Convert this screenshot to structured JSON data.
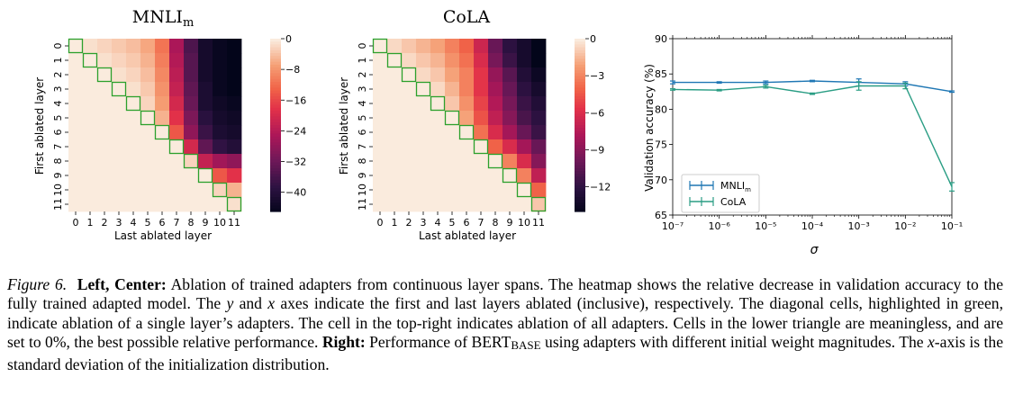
{
  "figure": {
    "caption": {
      "label": "Figure 6.",
      "left_center_heading": "Left, Center:",
      "text1": "Ablation of trained adapters from continuous layer spans. The heatmap shows the relative decrease in validation accuracy to the fully trained adapted model. The",
      "y_var": "y",
      "and_word": "and",
      "x_var": "x",
      "text2": "axes indicate the first and last layers ablated (inclusive), respectively. The diagonal cells, highlighted in green, indicate ablation of a single layer’s adapters. The cell in the top-right indicates ablation of all adapters. Cells in the lower triangle are meaningless, and are set to 0%, the best possible relative performance.",
      "right_heading": "Right:",
      "text3": "Performance of BERT",
      "bert_sub": "BASE",
      "text4": "using adapters with different initial weight magnitudes. The",
      "x_axis_var": "x",
      "text5": "-axis is the standard deviation of the initialization distribution."
    }
  },
  "chart_data": [
    {
      "type": "heatmap",
      "title": "MNLI",
      "title_sub": "m",
      "xlabel": "Last ablated layer",
      "ylabel": "First ablated layer",
      "x_ticks": [
        "0",
        "1",
        "2",
        "3",
        "4",
        "5",
        "6",
        "7",
        "8",
        "9",
        "10",
        "11"
      ],
      "y_ticks": [
        "0",
        "1",
        "2",
        "3",
        "4",
        "5",
        "6",
        "7",
        "8",
        "9",
        "10",
        "11"
      ],
      "colorbar_range": [
        -45,
        0
      ],
      "colorbar_ticks": [
        0,
        -8,
        -16,
        -24,
        -32,
        -40
      ],
      "colorbar_tick_labels": [
        "0",
        "−8",
        "−16",
        "−24",
        "−32",
        "−40"
      ],
      "diagonal_highlight": "#2ca02c",
      "values": [
        [
          0,
          -1,
          -2,
          -3,
          -4,
          -6,
          -11,
          -25,
          -35,
          -42,
          -44,
          -45
        ],
        [
          0,
          0,
          -1,
          -2,
          -3,
          -5,
          -10,
          -24,
          -34,
          -42,
          -44,
          -45
        ],
        [
          0,
          0,
          0,
          -1,
          -2,
          -4,
          -9,
          -23,
          -34,
          -42,
          -44,
          -45
        ],
        [
          0,
          0,
          0,
          0,
          -1,
          -3,
          -8,
          -22,
          -33,
          -41,
          -44,
          -45
        ],
        [
          0,
          0,
          0,
          0,
          0,
          -2,
          -7,
          -20,
          -32,
          -41,
          -43,
          -44
        ],
        [
          0,
          0,
          0,
          0,
          0,
          0,
          -5,
          -18,
          -30,
          -39,
          -42,
          -43
        ],
        [
          0,
          0,
          0,
          0,
          0,
          0,
          0,
          -14,
          -28,
          -37,
          -41,
          -42
        ],
        [
          0,
          0,
          0,
          0,
          0,
          0,
          0,
          0,
          -20,
          -33,
          -38,
          -40
        ],
        [
          0,
          0,
          0,
          0,
          0,
          0,
          0,
          0,
          -2,
          -22,
          -26,
          -28
        ],
        [
          0,
          0,
          0,
          0,
          0,
          0,
          0,
          0,
          0,
          0,
          -14,
          -18
        ],
        [
          0,
          0,
          0,
          0,
          0,
          0,
          0,
          0,
          0,
          0,
          -2,
          -5
        ],
        [
          0,
          0,
          0,
          0,
          0,
          0,
          0,
          0,
          0,
          0,
          0,
          -1
        ]
      ]
    },
    {
      "type": "heatmap",
      "title": "CoLA",
      "xlabel": "Last ablated layer",
      "ylabel": "First ablated layer",
      "x_ticks": [
        "0",
        "1",
        "2",
        "3",
        "4",
        "5",
        "6",
        "7",
        "8",
        "9",
        "10",
        "11"
      ],
      "y_ticks": [
        "0",
        "1",
        "2",
        "3",
        "4",
        "5",
        "6",
        "7",
        "8",
        "9",
        "10",
        "11"
      ],
      "colorbar_range": [
        -14,
        0
      ],
      "colorbar_ticks": [
        0,
        -3,
        -6,
        -9,
        -12
      ],
      "colorbar_tick_labels": [
        "0",
        "−3",
        "−6",
        "−9",
        "−12"
      ],
      "diagonal_highlight": "#2ca02c",
      "values": [
        [
          0,
          -0.5,
          -1,
          -1.5,
          -2,
          -3,
          -4,
          -6.5,
          -10,
          -12,
          -13,
          -14
        ],
        [
          0,
          0,
          -0.5,
          -1,
          -1.5,
          -2.5,
          -3.5,
          -6,
          -9.5,
          -11.5,
          -13,
          -14
        ],
        [
          0,
          0,
          0,
          -0.5,
          -1,
          -2,
          -3,
          -5.5,
          -8.5,
          -10.5,
          -12.5,
          -13.5
        ],
        [
          0,
          0,
          0,
          0,
          -0.5,
          -1.5,
          -3,
          -5.5,
          -8,
          -10,
          -12,
          -13
        ],
        [
          0,
          0,
          0,
          0,
          0,
          -1,
          -2.5,
          -5,
          -7.5,
          -9.5,
          -11.5,
          -12.5
        ],
        [
          0,
          0,
          0,
          0,
          0,
          0,
          -2,
          -4.5,
          -7,
          -9,
          -11,
          -12
        ],
        [
          0,
          0,
          0,
          0,
          0,
          0,
          0,
          -3.5,
          -6,
          -8,
          -10,
          -11.5
        ],
        [
          0,
          0,
          0,
          0,
          0,
          0,
          0,
          0,
          -4,
          -6,
          -8,
          -10
        ],
        [
          0,
          0,
          0,
          0,
          0,
          0,
          0,
          0,
          0,
          -3,
          -6,
          -9
        ],
        [
          0,
          0,
          0,
          0,
          0,
          0,
          0,
          0,
          0,
          0,
          -3,
          -7
        ],
        [
          0,
          0,
          0,
          0,
          0,
          0,
          0,
          0,
          0,
          0,
          0,
          -4
        ],
        [
          0,
          0,
          0,
          0,
          0,
          0,
          0,
          0,
          0,
          0,
          0,
          -1
        ]
      ]
    },
    {
      "type": "line",
      "title": "",
      "xlabel": "σ",
      "ylabel": "Validation accuracy (%)",
      "xscale": "log",
      "x": [
        1e-07,
        1e-06,
        1e-05,
        0.0001,
        0.001,
        0.01,
        0.1
      ],
      "x_tick_labels": [
        "10⁻⁷",
        "10⁻⁶",
        "10⁻⁵",
        "10⁻⁴",
        "10⁻³",
        "10⁻²",
        "10⁻¹"
      ],
      "ylim": [
        65,
        90
      ],
      "y_ticks": [
        65,
        70,
        75,
        80,
        85,
        90
      ],
      "legend_position": "lower-left",
      "series": [
        {
          "name": "MNLI",
          "name_sub": "m",
          "color": "#1f77b4",
          "values": [
            83.8,
            83.8,
            83.8,
            84.0,
            83.8,
            83.6,
            82.5
          ],
          "errors": [
            0.2,
            0.1,
            0.2,
            0.1,
            0.5,
            0.3,
            0.1
          ]
        },
        {
          "name": "CoLA",
          "color": "#2a9d84",
          "values": [
            82.8,
            82.7,
            83.2,
            82.2,
            83.3,
            83.3,
            69.0
          ],
          "errors": [
            0.1,
            0.1,
            0.2,
            0.1,
            0.6,
            0.4,
            0.6
          ]
        }
      ]
    }
  ]
}
